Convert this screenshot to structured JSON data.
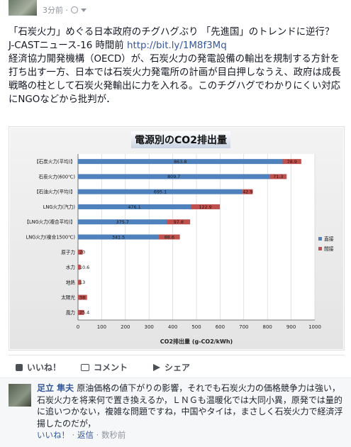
{
  "post": {
    "time": "3分前 ·",
    "title": "「石炭火力」めぐる日本政府のチグハグぶり 「先進国」のトレンドに逆行？",
    "source_name": "J-CASTニュース-16 時間前 ",
    "source_link": "http://bit.ly/1M8f3Mq",
    "text": "経済協力開発機構（OECD）が、石炭火力の発電設備の輸出を規制する方針を打ち出す一方、日本では石炭火力発電所の計画が目白押しなうえ、政府は成長戦略の柱として石炭火発輸出に力を入れる。このチグハグでわかりにくい対応にNGOなどから批判が．"
  },
  "actions": {
    "like": "いいね！",
    "comment": "コメント",
    "share": "シェア"
  },
  "comment": {
    "author": "足立 隼夫",
    "text": "原油価格の値下がりの影響，それでも石炭火力の価格競争力は強い，石炭火力を将来何で置き換えるか，ＬＮＧも温暖化では大同小異，原発では量的に追いつかない，複雑な問題ですね，中国やタイは，まさしく石炭火力で経済浮揚したのだが，",
    "like_link": "いいね！",
    "reply_link": "返信",
    "time": "数秒前",
    "sep": " · "
  },
  "chart_data": {
    "type": "bar",
    "title": "電源別のCO2排出量",
    "xlabel": "CO2排出量 (g-CO2/kWh)",
    "xlim": [
      0,
      1000
    ],
    "xticks": [
      "0",
      "100",
      "200",
      "300",
      "400",
      "500",
      "600",
      "700",
      "800",
      "900",
      "1000"
    ],
    "categories": [
      "【石炭火力(平均)】",
      "石炭火力(600℃)",
      "【石油火力(平均)】",
      "LNG火力(汽力)",
      "【LNG火力(複合平均)】",
      "LNG火力(複合1500℃)",
      "原子力",
      "水力",
      "地熱",
      "太陽光",
      "風力"
    ],
    "series": [
      {
        "name": "直接",
        "values": [
          863.8,
          809.7,
          695.1,
          476.1,
          375.7,
          341.5,
          0,
          0,
          0,
          0,
          0
        ],
        "labels": [
          "863.8",
          "809.7",
          "695.1",
          "476.1",
          "375.7",
          "341.5",
          "",
          "",
          "",
          "",
          ""
        ]
      },
      {
        "name": "間接",
        "values": [
          78.9,
          71.3,
          42.9,
          122.9,
          97.8,
          88.6,
          20,
          10.6,
          13,
          38,
          25.4
        ],
        "labels": [
          "78.9",
          "71.3",
          "42.9",
          "122.9",
          "97.8",
          "88.6",
          "20",
          "10.6",
          "13",
          "38",
          "25.4"
        ]
      }
    ],
    "colors": {
      "direct": "#4f81bd",
      "indirect": "#c0504d"
    },
    "legend_position": "right",
    "grid": true
  }
}
